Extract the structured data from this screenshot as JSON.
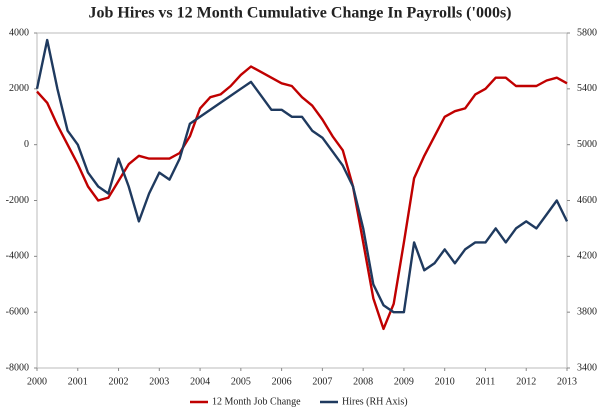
{
  "chart_data": {
    "type": "line",
    "title": "Job Hires vs 12 Month Cumulative Change In Payrolls ('000s)",
    "x": [
      2000,
      2000.25,
      2000.5,
      2000.75,
      2001,
      2001.25,
      2001.5,
      2001.75,
      2002,
      2002.25,
      2002.5,
      2002.75,
      2003,
      2003.25,
      2003.5,
      2003.75,
      2004,
      2004.25,
      2004.5,
      2004.75,
      2005,
      2005.25,
      2005.5,
      2005.75,
      2006,
      2006.25,
      2006.5,
      2006.75,
      2007,
      2007.25,
      2007.5,
      2007.75,
      2008,
      2008.25,
      2008.5,
      2008.75,
      2009,
      2009.25,
      2009.5,
      2009.75,
      2010,
      2010.25,
      2010.5,
      2010.75,
      2011,
      2011.25,
      2011.5,
      2011.75,
      2012,
      2012.25,
      2012.5,
      2012.75,
      2013
    ],
    "series": [
      {
        "name": "12 Month Job Change",
        "color": "#c00000",
        "axis": "y",
        "values": [
          1900,
          1500,
          700,
          0,
          -700,
          -1500,
          -2000,
          -1900,
          -1300,
          -700,
          -400,
          -500,
          -500,
          -500,
          -300,
          300,
          1300,
          1700,
          1800,
          2100,
          2500,
          2800,
          2600,
          2400,
          2200,
          2100,
          1700,
          1400,
          900,
          300,
          -200,
          -1500,
          -3500,
          -5500,
          -6600,
          -5700,
          -3500,
          -1200,
          -400,
          300,
          1000,
          1200,
          1300,
          1800,
          2000,
          2400,
          2400,
          2100,
          2100,
          2100,
          2300,
          2400,
          2200
        ]
      },
      {
        "name": "Hires (RH Axis)",
        "color": "#1f3a5f",
        "axis": "y2",
        "values": [
          5400,
          5750,
          5400,
          5100,
          5000,
          4800,
          4700,
          4650,
          4900,
          4700,
          4450,
          4650,
          4800,
          4750,
          4900,
          5150,
          5200,
          5250,
          5300,
          5350,
          5400,
          5450,
          5350,
          5250,
          5250,
          5200,
          5200,
          5100,
          5050,
          4950,
          4850,
          4700,
          4400,
          4000,
          3850,
          3800,
          3800,
          4300,
          4100,
          4150,
          4250,
          4150,
          4250,
          4300,
          4300,
          4400,
          4300,
          4400,
          4450,
          4400,
          4500,
          4600,
          4450
        ]
      }
    ],
    "xlim": [
      2000,
      2013
    ],
    "xticks": [
      2000,
      2001,
      2002,
      2003,
      2004,
      2005,
      2006,
      2007,
      2008,
      2009,
      2010,
      2011,
      2012,
      2013
    ],
    "ylim": [
      -8000,
      4000
    ],
    "yticks": [
      -8000,
      -6000,
      -4000,
      -2000,
      0,
      2000,
      4000
    ],
    "y2lim": [
      3400,
      5800
    ],
    "y2ticks": [
      3400,
      3800,
      4200,
      4600,
      5000,
      5400,
      5800
    ],
    "legend": "bottom"
  }
}
